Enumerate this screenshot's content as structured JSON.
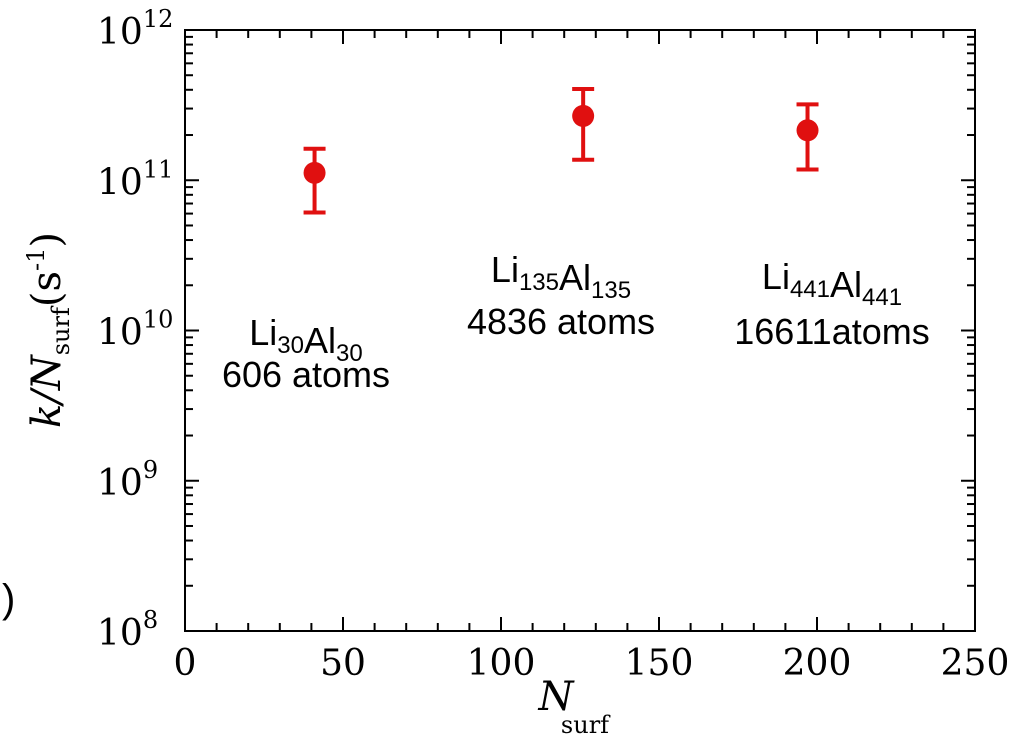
{
  "chart_data": {
    "type": "scatter",
    "xlabel": "N",
    "xlabel_sub": "surf",
    "ylabel_main": "k/N",
    "ylabel_sub": "surf",
    "ylabel_unit_open": "(s",
    "ylabel_unit_sup": "-1",
    "ylabel_unit_close": ")",
    "xlim": [
      0,
      250
    ],
    "x_ticks": [
      0,
      50,
      100,
      150,
      200,
      250
    ],
    "y_scale": "log",
    "ylim": [
      100000000.0,
      1000000000000.0
    ],
    "y_ticks": [
      {
        "base": "10",
        "exp": "8",
        "value": 100000000.0
      },
      {
        "base": "10",
        "exp": "9",
        "value": 1000000000.0
      },
      {
        "base": "10",
        "exp": "10",
        "value": 10000000000.0
      },
      {
        "base": "10",
        "exp": "11",
        "value": 100000000000.0
      },
      {
        "base": "10",
        "exp": "12",
        "value": 1000000000000.0
      }
    ],
    "grid": false,
    "marker_color": "#e01010",
    "points": [
      {
        "x": 41,
        "y": 112000000000.0,
        "yerr_low": 61000000000.0,
        "yerr_high": 162000000000.0
      },
      {
        "x": 126,
        "y": 268000000000.0,
        "yerr_low": 137000000000.0,
        "yerr_high": 405000000000.0
      },
      {
        "x": 197,
        "y": 215000000000.0,
        "yerr_low": 118000000000.0,
        "yerr_high": 320000000000.0
      }
    ],
    "annotations": [
      {
        "line1_parts": [
          {
            "t": "Li",
            "sub": false
          },
          {
            "t": "30",
            "sub": true
          },
          {
            "t": "Al",
            "sub": false
          },
          {
            "t": "30",
            "sub": true
          }
        ],
        "line2": "606 atoms"
      },
      {
        "line1_parts": [
          {
            "t": "Li",
            "sub": false
          },
          {
            "t": "135",
            "sub": true
          },
          {
            "t": "Al",
            "sub": false
          },
          {
            "t": "135",
            "sub": true
          }
        ],
        "line2": "4836 atoms"
      },
      {
        "line1_parts": [
          {
            "t": "Li",
            "sub": false
          },
          {
            "t": "441",
            "sub": true
          },
          {
            "t": "Al",
            "sub": false
          },
          {
            "t": "441",
            "sub": true
          }
        ],
        "line2": "16611atoms"
      }
    ],
    "stray_text": ")"
  }
}
